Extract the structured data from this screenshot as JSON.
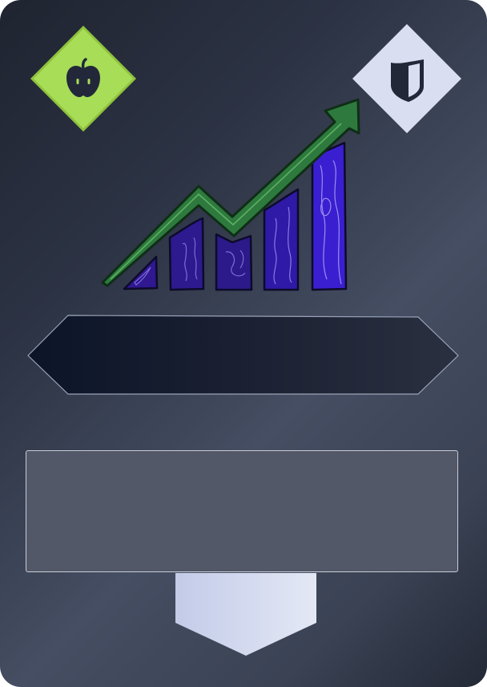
{
  "card": {
    "title": "",
    "description": "",
    "value": ""
  },
  "icons": {
    "left_badge": "apple-icon",
    "right_badge": "shield-icon",
    "art": "growth-chart-art"
  },
  "colors": {
    "left_badge_fill": "#a8dd58",
    "right_badge_fill": "#d9dff0",
    "bar_fill": "#3a1fb8",
    "arrow_fill": "#2e7a3e",
    "banner_fill": "#141a2c",
    "desc_fill": "#525868",
    "tab_fill": "#d3d9ef"
  }
}
